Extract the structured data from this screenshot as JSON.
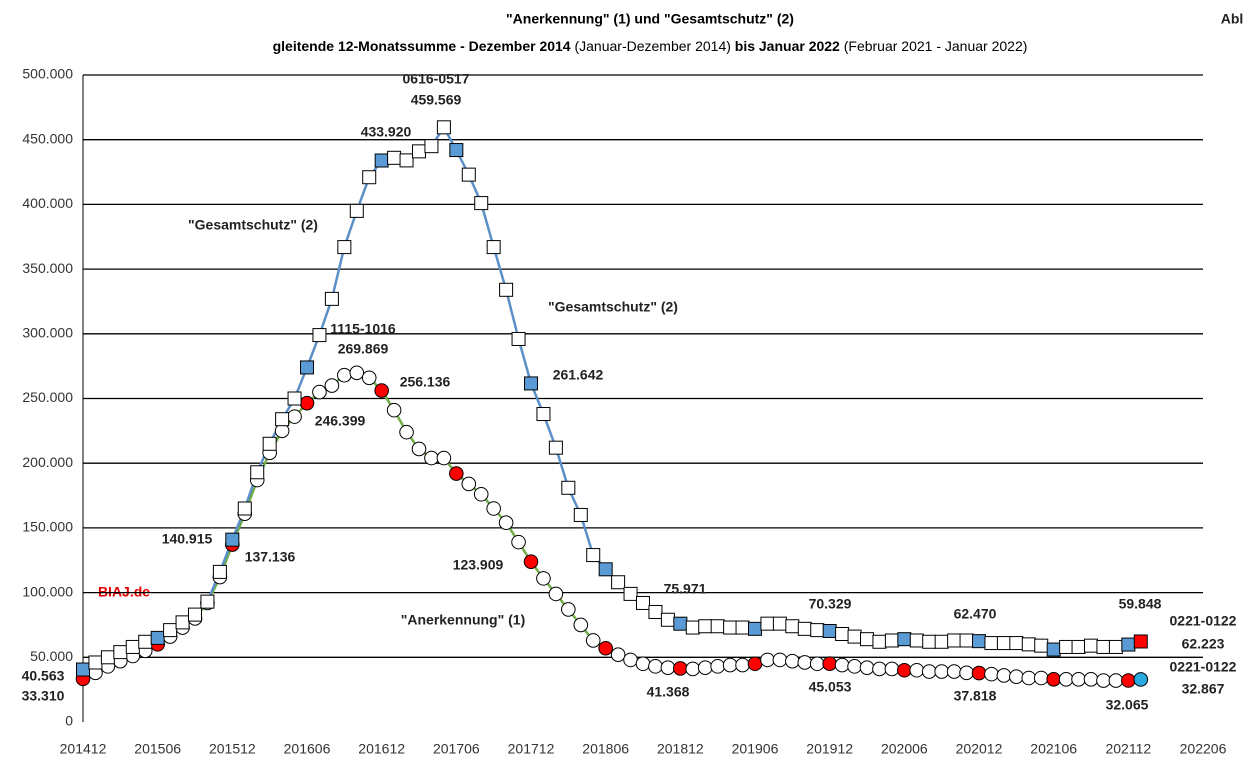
{
  "chart_data": {
    "type": "line",
    "title": "\"Anerkennung\" (1) und \"Gesamtschutz\" (2)",
    "subtitle": [
      "gleitende 12-Monatssumme - Dezember 2014 ",
      "(Januar-Dezember 2014)",
      " bis Januar 2022 ",
      "(Februar 2021 - Januar 2022)"
    ],
    "source": "BIAJ.de",
    "categories": [
      "201412",
      null,
      null,
      null,
      null,
      null,
      "201506",
      null,
      null,
      null,
      null,
      null,
      "201512",
      null,
      null,
      null,
      null,
      null,
      "201606",
      null,
      null,
      null,
      null,
      null,
      "201612",
      null,
      null,
      null,
      null,
      null,
      "201706",
      null,
      null,
      null,
      null,
      null,
      "201712",
      null,
      null,
      null,
      null,
      null,
      "201806",
      null,
      null,
      null,
      null,
      null,
      "201812",
      null,
      null,
      null,
      null,
      null,
      "201906",
      null,
      null,
      null,
      null,
      null,
      "201912",
      null,
      null,
      null,
      null,
      null,
      "202006",
      null,
      null,
      null,
      null,
      null,
      "202012",
      null,
      null,
      null,
      null,
      null,
      "202106",
      null,
      null,
      null,
      null,
      null,
      "202112",
      null,
      null,
      null,
      null,
      null,
      "202206"
    ],
    "ylim": [
      0,
      500000
    ],
    "yticks": [
      0,
      {
        "value": 50000,
        "label": "50.000"
      },
      {
        "value": 100000,
        "label": "100.000"
      },
      {
        "value": 150000,
        "label": "150.000"
      },
      {
        "value": 200000,
        "label": "200.000"
      },
      {
        "value": 250000,
        "label": "250.000"
      },
      {
        "value": 300000,
        "label": "300.000"
      },
      {
        "value": 350000,
        "label": "350.000"
      },
      {
        "value": 400000,
        "label": "400.000"
      },
      {
        "value": 450000,
        "label": "450.000"
      },
      {
        "value": 500000,
        "label": "500.000"
      }
    ],
    "grid": true,
    "series": [
      {
        "name": "Gesamtschutz",
        "marker": "square",
        "color": "#5b8fc7",
        "marker_fill": "#ffffff",
        "highlight_color": "#5b9bd5",
        "last_color": "#ff0000",
        "values": [
          40563,
          46000,
          50000,
          54000,
          58000,
          62000,
          65000,
          71000,
          77000,
          83000,
          93000,
          116000,
          140915,
          165000,
          193000,
          215000,
          234000,
          250000,
          274000,
          299000,
          327000,
          367000,
          395000,
          421000,
          433920,
          436000,
          434000,
          441000,
          445000,
          459569,
          442000,
          423000,
          401000,
          367000,
          334000,
          296000,
          261642,
          238000,
          212000,
          181000,
          160000,
          129000,
          118000,
          108000,
          99000,
          92000,
          85000,
          79000,
          75971,
          73000,
          74000,
          74000,
          73000,
          73000,
          72000,
          76000,
          76000,
          74000,
          72000,
          71000,
          70329,
          68000,
          66000,
          64000,
          62000,
          63000,
          64000,
          63000,
          62000,
          62000,
          63000,
          63000,
          62470,
          61000,
          61000,
          61000,
          60000,
          59000,
          56000,
          58000,
          58000,
          59000,
          58000,
          58000,
          59848,
          62223,
          null,
          null,
          null,
          null,
          null
        ],
        "value_labels": [
          "40.563",
          null,
          null,
          null,
          null,
          null,
          null,
          null,
          null,
          null,
          null,
          null,
          "140.915",
          null,
          null,
          null,
          null,
          null,
          null,
          null,
          null,
          null,
          null,
          null,
          "433.920",
          null,
          null,
          null,
          null,
          "459.569",
          null,
          null,
          null,
          null,
          null,
          null,
          "261.642",
          null,
          null,
          null,
          null,
          null,
          null,
          null,
          null,
          null,
          null,
          null,
          "75.971",
          null,
          null,
          null,
          null,
          null,
          null,
          null,
          null,
          null,
          null,
          null,
          "70.329",
          null,
          null,
          null,
          null,
          null,
          null,
          null,
          null,
          null,
          null,
          null,
          "62.470",
          null,
          null,
          null,
          null,
          null,
          null,
          null,
          null,
          null,
          null,
          null,
          "59.848",
          "62.223",
          null,
          null,
          null,
          null,
          null
        ]
      },
      {
        "name": "Anerkennung",
        "marker": "circle",
        "color": "#70ad47",
        "marker_fill": "#ffffff",
        "highlight_color": "#ff0000",
        "last_color": "#29abe2",
        "values": [
          33310,
          38000,
          43000,
          47000,
          51000,
          55000,
          60000,
          66000,
          73000,
          80000,
          92000,
          112000,
          137136,
          161000,
          187000,
          208000,
          225000,
          236000,
          246399,
          255000,
          260000,
          268000,
          269869,
          266000,
          256136,
          241000,
          224000,
          211000,
          204000,
          204000,
          192000,
          184000,
          176000,
          165000,
          154000,
          139000,
          123909,
          111000,
          99000,
          87000,
          75000,
          63000,
          57000,
          52000,
          48000,
          45000,
          43000,
          42000,
          41368,
          41000,
          42000,
          43000,
          44000,
          44000,
          45000,
          48000,
          48000,
          47000,
          46000,
          45000,
          45053,
          44000,
          43000,
          42000,
          41000,
          41000,
          40000,
          40000,
          39000,
          39000,
          39000,
          38000,
          37818,
          37000,
          36000,
          35000,
          34000,
          34000,
          33000,
          33000,
          33000,
          33000,
          32000,
          32000,
          32065,
          32867,
          null,
          null,
          null,
          null,
          null
        ],
        "value_labels": [
          "33.310",
          null,
          null,
          null,
          null,
          null,
          null,
          null,
          null,
          null,
          null,
          null,
          "137.136",
          null,
          null,
          null,
          null,
          null,
          "246.399",
          null,
          null,
          null,
          "269.869",
          null,
          "256.136",
          null,
          null,
          null,
          null,
          null,
          null,
          null,
          null,
          null,
          null,
          null,
          "123.909",
          null,
          null,
          null,
          null,
          null,
          null,
          null,
          null,
          null,
          null,
          null,
          "41.368",
          null,
          null,
          null,
          null,
          null,
          null,
          null,
          null,
          null,
          null,
          null,
          "45.053",
          null,
          null,
          null,
          null,
          null,
          null,
          null,
          null,
          null,
          null,
          null,
          "37.818",
          null,
          null,
          null,
          null,
          null,
          null,
          null,
          null,
          null,
          null,
          null,
          "32.065",
          "32.867",
          null,
          null,
          null,
          null,
          null
        ]
      }
    ],
    "annotations": [
      {
        "text": "0616-0517"
      },
      {
        "text": "1115-1016"
      },
      {
        "text": "0221-0122"
      },
      {
        "text": "0221-0122"
      },
      {
        "text": "\"Gesamtschutz\" (2)"
      },
      {
        "text": "\"Gesamtschutz\" (2)"
      },
      {
        "text": "\"Anerkennung\" (1)"
      },
      {
        "text": "Abl"
      }
    ]
  }
}
